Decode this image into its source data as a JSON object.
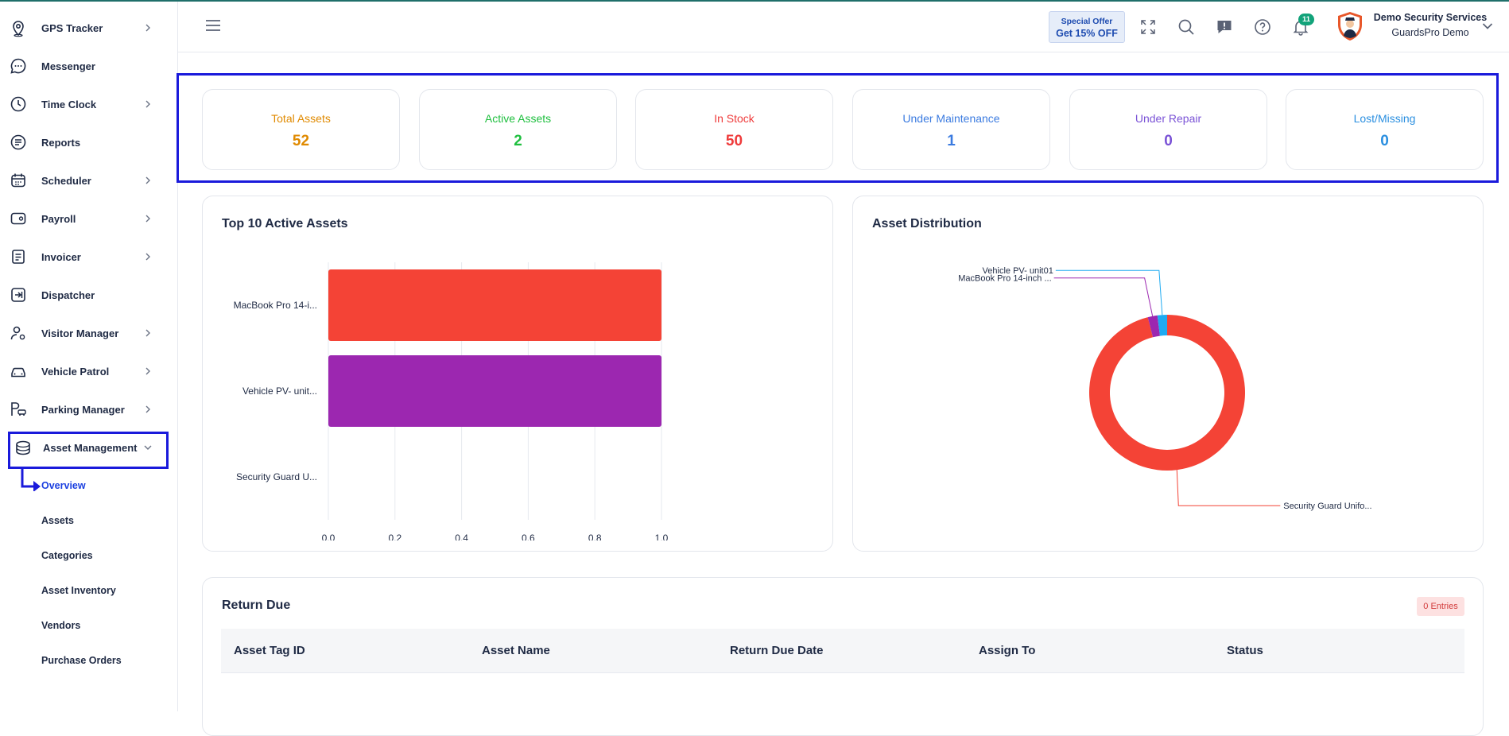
{
  "sidebar": {
    "items": [
      {
        "label": "GPS Tracker",
        "icon": "map-pin-icon",
        "has_children": true
      },
      {
        "label": "Messenger",
        "icon": "chat-icon",
        "has_children": false
      },
      {
        "label": "Time Clock",
        "icon": "clock-icon",
        "has_children": true
      },
      {
        "label": "Reports",
        "icon": "report-icon",
        "has_children": false
      },
      {
        "label": "Scheduler",
        "icon": "calendar-icon",
        "has_children": true
      },
      {
        "label": "Payroll",
        "icon": "wallet-icon",
        "has_children": true
      },
      {
        "label": "Invoicer",
        "icon": "invoice-icon",
        "has_children": true
      },
      {
        "label": "Dispatcher",
        "icon": "dispatch-icon",
        "has_children": false
      },
      {
        "label": "Visitor Manager",
        "icon": "visitor-icon",
        "has_children": true
      },
      {
        "label": "Vehicle Patrol",
        "icon": "car-icon",
        "has_children": true
      },
      {
        "label": "Parking Manager",
        "icon": "parking-icon",
        "has_children": true
      },
      {
        "label": "Asset Management",
        "icon": "box-icon",
        "has_children": true,
        "expanded": true
      }
    ],
    "sub_items": [
      {
        "label": "Overview",
        "active": true
      },
      {
        "label": "Assets"
      },
      {
        "label": "Categories"
      },
      {
        "label": "Asset Inventory"
      },
      {
        "label": "Vendors"
      },
      {
        "label": "Purchase Orders"
      }
    ]
  },
  "header": {
    "offer_line1": "Special Offer",
    "offer_line2": "Get 15% OFF",
    "notification_count": "11",
    "company_name": "Demo Security Services",
    "company_sub": "GuardsPro Demo"
  },
  "stats": [
    {
      "title": "Total Assets",
      "value": "52",
      "color": "#e08a00"
    },
    {
      "title": "Active Assets",
      "value": "2",
      "color": "#1fbf3f"
    },
    {
      "title": "In Stock",
      "value": "50",
      "color": "#ef3b3b"
    },
    {
      "title": "Under Maintenance",
      "value": "1",
      "color": "#3b7be0"
    },
    {
      "title": "Under Repair",
      "value": "0",
      "color": "#7a52d6"
    },
    {
      "title": "Lost/Missing",
      "value": "0",
      "color": "#2a8fe0"
    }
  ],
  "top_assets": {
    "title": "Top 10 Active Assets"
  },
  "distribution": {
    "title": "Asset Distribution"
  },
  "chart_data": [
    {
      "type": "bar",
      "orientation": "horizontal",
      "title": "Top 10 Active Assets",
      "categories": [
        "MacBook Pro 14-i...",
        "Vehicle PV- unit...",
        "Security Guard U..."
      ],
      "values": [
        1,
        1,
        0
      ],
      "colors": [
        "#f44336",
        "#9c27b0",
        "#03a9f4"
      ],
      "xlim": [
        0,
        1
      ],
      "xticks": [
        "0.0",
        "0.2",
        "0.4",
        "0.6",
        "0.8",
        "1.0"
      ],
      "grid": true
    },
    {
      "type": "pie",
      "donut": true,
      "title": "Asset Distribution",
      "labels": [
        "Security Guard Unifo...",
        "MacBook Pro 14-inch ...",
        "Vehicle PV- unit01"
      ],
      "values": [
        48,
        1,
        1
      ],
      "colors": [
        "#f44336",
        "#9c27b0",
        "#1eaaf1"
      ]
    }
  ],
  "return_due": {
    "title": "Return Due",
    "entries_label": "0 Entries",
    "columns": [
      "Asset Tag ID",
      "Asset Name",
      "Return Due Date",
      "Assign To",
      "Status"
    ]
  }
}
